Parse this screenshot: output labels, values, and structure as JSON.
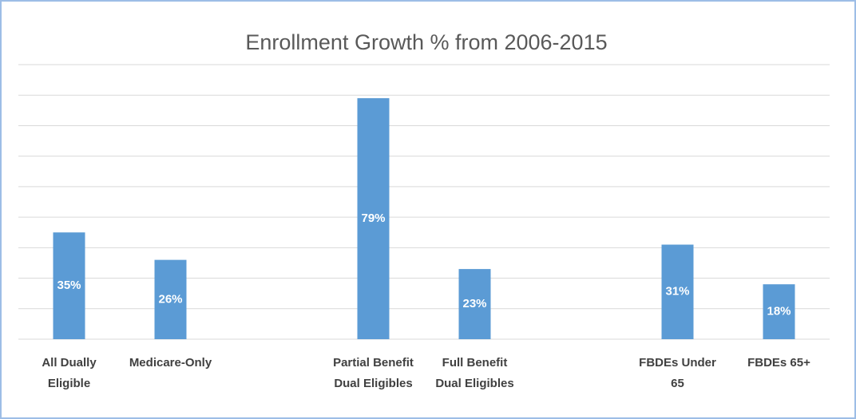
{
  "chart_data": {
    "type": "bar",
    "title": "Enrollment Growth % from 2006-2015",
    "categories": [
      "All Dually Eligible",
      "Medicare-Only",
      null,
      "Partial Benefit Dual Eligibles",
      "Full Benefit Dual Eligibles",
      null,
      "FBDEs Under 65",
      "FBDEs 65+"
    ],
    "values": [
      35,
      26,
      null,
      79,
      23,
      null,
      31,
      18
    ],
    "value_labels": [
      "35%",
      "26%",
      null,
      "79%",
      "23%",
      null,
      "31%",
      "18%"
    ],
    "color": "#5b9bd5",
    "ylim": [
      0,
      90
    ],
    "yticks": [
      0,
      10,
      20,
      30,
      40,
      50,
      60,
      70,
      80,
      90
    ],
    "grid": true
  }
}
